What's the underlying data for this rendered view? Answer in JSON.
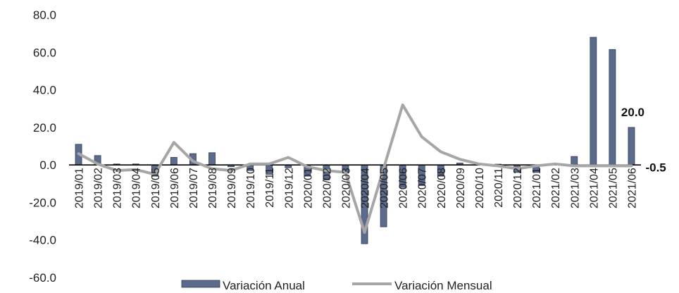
{
  "chart_data": {
    "type": "bar",
    "categories": [
      "2019/01",
      "2019/02",
      "2019/03",
      "2019/04",
      "2019/05",
      "2019/06",
      "2019/07",
      "2019/08",
      "2019/09",
      "2019/10",
      "2019/11",
      "2019/12",
      "2020/01",
      "2020/02",
      "2020/03",
      "2020/04",
      "2020/05",
      "2020/06",
      "2020/07",
      "2020/08",
      "2020/09",
      "2020/10",
      "2020/11",
      "2020/12",
      "2021/01",
      "2021/02",
      "2021/03",
      "2021/04",
      "2021/05",
      "2021/06"
    ],
    "ylim": [
      -60,
      80
    ],
    "yticks": [
      "80.0",
      "60.0",
      "40.0",
      "20.0",
      "0.0",
      "-20.0",
      "-40.0",
      "-60.0"
    ],
    "ytick_values": [
      80,
      60,
      40,
      20,
      0,
      -20,
      -40,
      -60
    ],
    "series": [
      {
        "name": "Variación Anual",
        "kind": "bar",
        "color": "#5b6b8c",
        "values": [
          11,
          5,
          0.5,
          0.5,
          -6,
          4,
          6,
          6.5,
          -1,
          -3,
          -5,
          -1.5,
          -6,
          -8,
          -4,
          -42,
          -33,
          -12,
          -11,
          -6,
          1,
          0.3,
          0.4,
          -4,
          -4,
          0.5,
          4.5,
          68,
          61.5,
          20
        ]
      },
      {
        "name": "Variación Mensual",
        "kind": "line",
        "color": "#a6a6a6",
        "values": [
          6,
          0.5,
          -3,
          -2.5,
          -5,
          12,
          2,
          -2,
          -3,
          0.5,
          0.5,
          4,
          -1,
          -3,
          -4,
          -36,
          -2,
          32,
          15,
          7,
          3,
          0.5,
          -0.5,
          -2,
          -0.5,
          0.5,
          -0.5,
          -0.5,
          -0.5,
          -0.5
        ]
      }
    ],
    "data_labels": [
      {
        "text": "20.0"
      },
      {
        "text": "-0.5"
      }
    ],
    "legend": {
      "placement": "bottom-center"
    },
    "grid": false
  }
}
